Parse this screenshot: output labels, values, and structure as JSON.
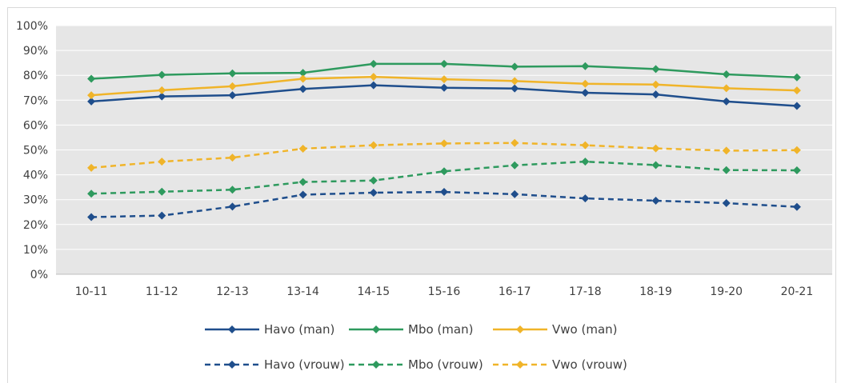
{
  "chart_data": {
    "type": "line",
    "categories": [
      "10-11",
      "11-12",
      "12-13",
      "13-14",
      "14-15",
      "15-16",
      "16-17",
      "17-18",
      "18-19",
      "19-20",
      "20-21"
    ],
    "ylim": [
      0,
      100
    ],
    "yticks": [
      "0%",
      "10%",
      "20%",
      "30%",
      "40%",
      "50%",
      "60%",
      "70%",
      "80%",
      "90%",
      "100%"
    ],
    "grid": true,
    "legend_position": "bottom",
    "series": [
      {
        "name": "Havo (man)",
        "color": "#1f4e8c",
        "dashed": false,
        "values": [
          69.5,
          71.5,
          72,
          74.5,
          76,
          75,
          74.7,
          73,
          72.3,
          69.5,
          67.7
        ]
      },
      {
        "name": "Mbo (man)",
        "color": "#2e9a5e",
        "dashed": false,
        "values": [
          78.6,
          80.2,
          80.8,
          81,
          84.6,
          84.6,
          83.5,
          83.7,
          82.5,
          80.4,
          79.2
        ]
      },
      {
        "name": "Vwo (man)",
        "color": "#f0b429",
        "dashed": false,
        "values": [
          72,
          74,
          75.6,
          78.6,
          79.4,
          78.4,
          77.7,
          76.6,
          76.3,
          74.8,
          73.9
        ]
      },
      {
        "name": "Havo (vrouw)",
        "color": "#1f4e8c",
        "dashed": true,
        "values": [
          23,
          23.6,
          27.2,
          32,
          32.8,
          33.1,
          32.2,
          30.5,
          29.6,
          28.6,
          27.1
        ]
      },
      {
        "name": "Mbo (vrouw)",
        "color": "#2e9a5e",
        "dashed": true,
        "values": [
          32.4,
          33.2,
          34,
          37.1,
          37.7,
          41.4,
          43.8,
          45.3,
          43.9,
          41.9,
          41.8
        ]
      },
      {
        "name": "Vwo (vrouw)",
        "color": "#f0b429",
        "dashed": true,
        "values": [
          42.8,
          45.3,
          46.9,
          50.5,
          51.9,
          52.6,
          52.8,
          51.9,
          50.6,
          49.7,
          49.9
        ]
      }
    ]
  }
}
